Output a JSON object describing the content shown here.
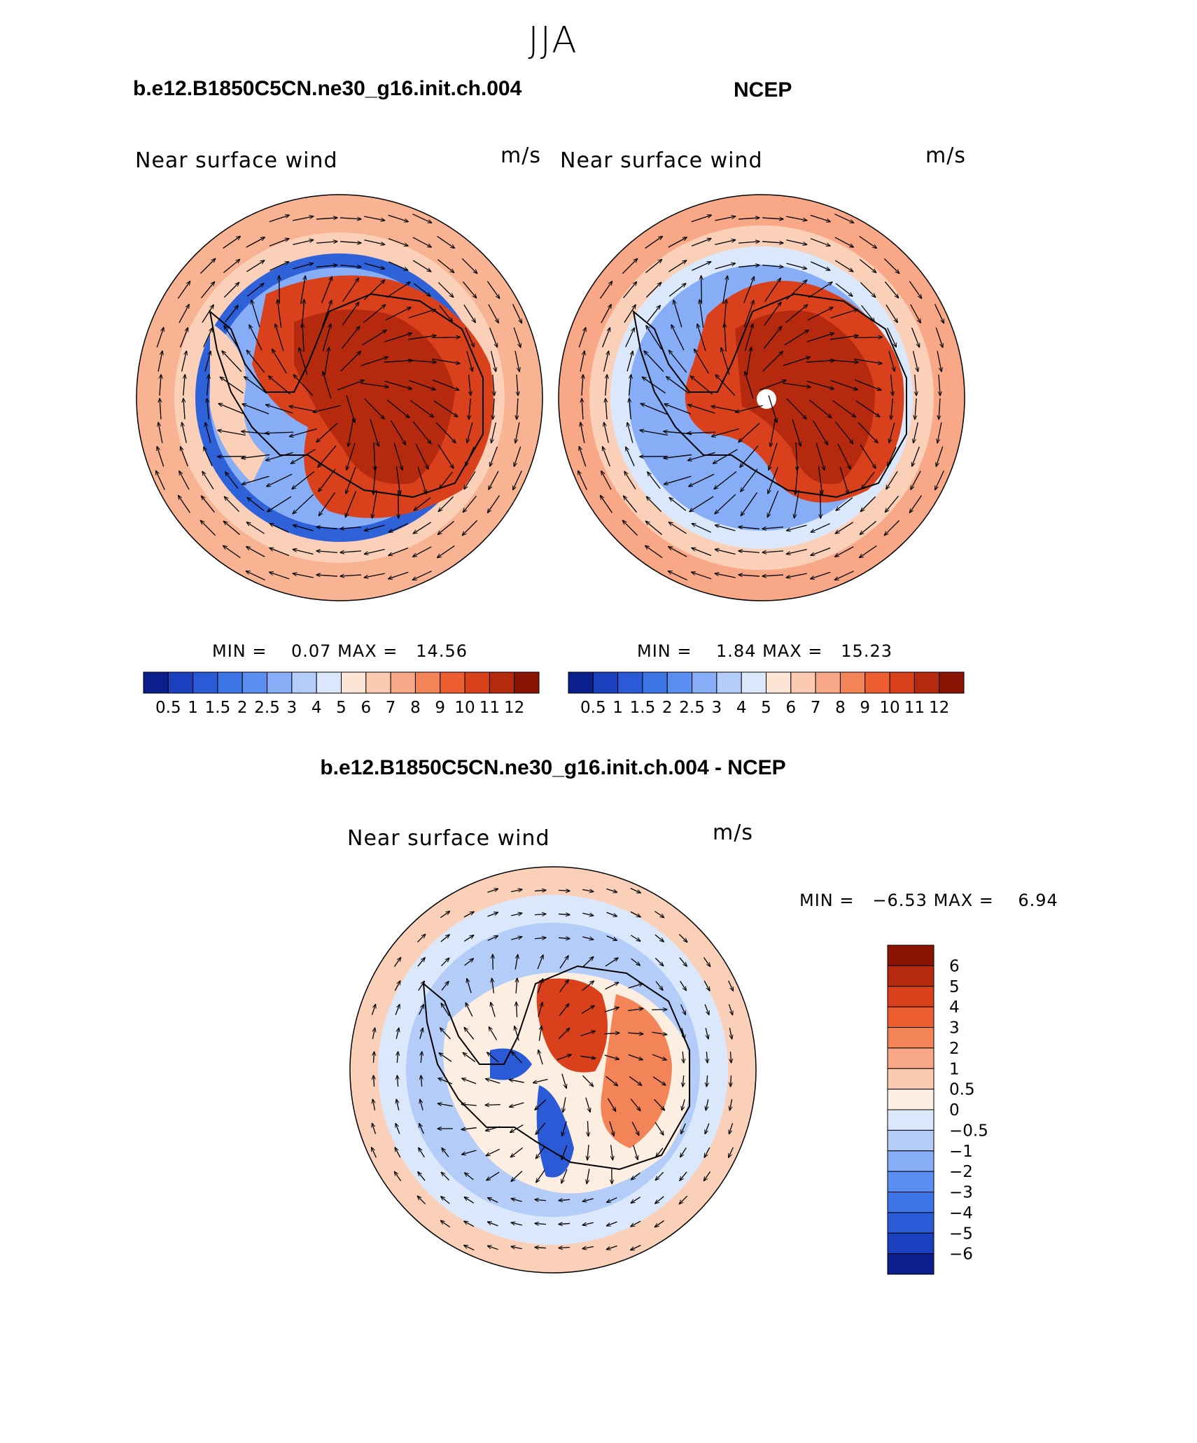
{
  "season": "JJA",
  "panels": [
    {
      "id": "model",
      "title": "b.e12.B1850C5CN.ne30_g16.init.ch.004",
      "label": "Near surface wind",
      "units": "m/s",
      "min_label": "MIN = ",
      "min_value": "0.07",
      "max_label": "MAX = ",
      "max_value": "14.56"
    },
    {
      "id": "ncep",
      "title": "NCEP",
      "label": "Near surface wind",
      "units": "m/s",
      "min_label": "MIN = ",
      "min_value": "1.84",
      "max_label": "MAX = ",
      "max_value": "15.23"
    },
    {
      "id": "diff",
      "title": "b.e12.B1850C5CN.ne30_g16.init.ch.004 - NCEP",
      "label": "Near surface wind",
      "units": "m/s",
      "min_label": "MIN = ",
      "min_value": "−6.53",
      "max_label": "MAX = ",
      "max_value": "6.94"
    }
  ],
  "colorbar_abs": {
    "labels": [
      "0.5",
      "1",
      "1.5",
      "2",
      "2.5",
      "3",
      "4",
      "5",
      "6",
      "7",
      "8",
      "9",
      "10",
      "11",
      "12"
    ],
    "colors": [
      "#0a1e8c",
      "#1a3fbf",
      "#2a5ad6",
      "#3d74e6",
      "#5a8ef0",
      "#86adf5",
      "#b4cdf8",
      "#dbe8fb",
      "#fde5d5",
      "#fbcab0",
      "#f8a886",
      "#f38458",
      "#ec5e30",
      "#d9411c",
      "#b52a0e",
      "#8a1304"
    ]
  },
  "colorbar_diff": {
    "labels": [
      "6",
      "5",
      "4",
      "3",
      "2",
      "1",
      "0.5",
      "0",
      "−0.5",
      "−1",
      "−2",
      "−3",
      "−4",
      "−5",
      "−6"
    ],
    "colors": [
      "#8a1304",
      "#b52a0e",
      "#d9411c",
      "#ec5e30",
      "#f38458",
      "#f8a886",
      "#fbcab0",
      "#fdeee2",
      "#dbe8fb",
      "#b4cdf8",
      "#86adf5",
      "#5a8ef0",
      "#3d74e6",
      "#2a5ad6",
      "#1a3fbf",
      "#0a1e8c"
    ]
  }
}
